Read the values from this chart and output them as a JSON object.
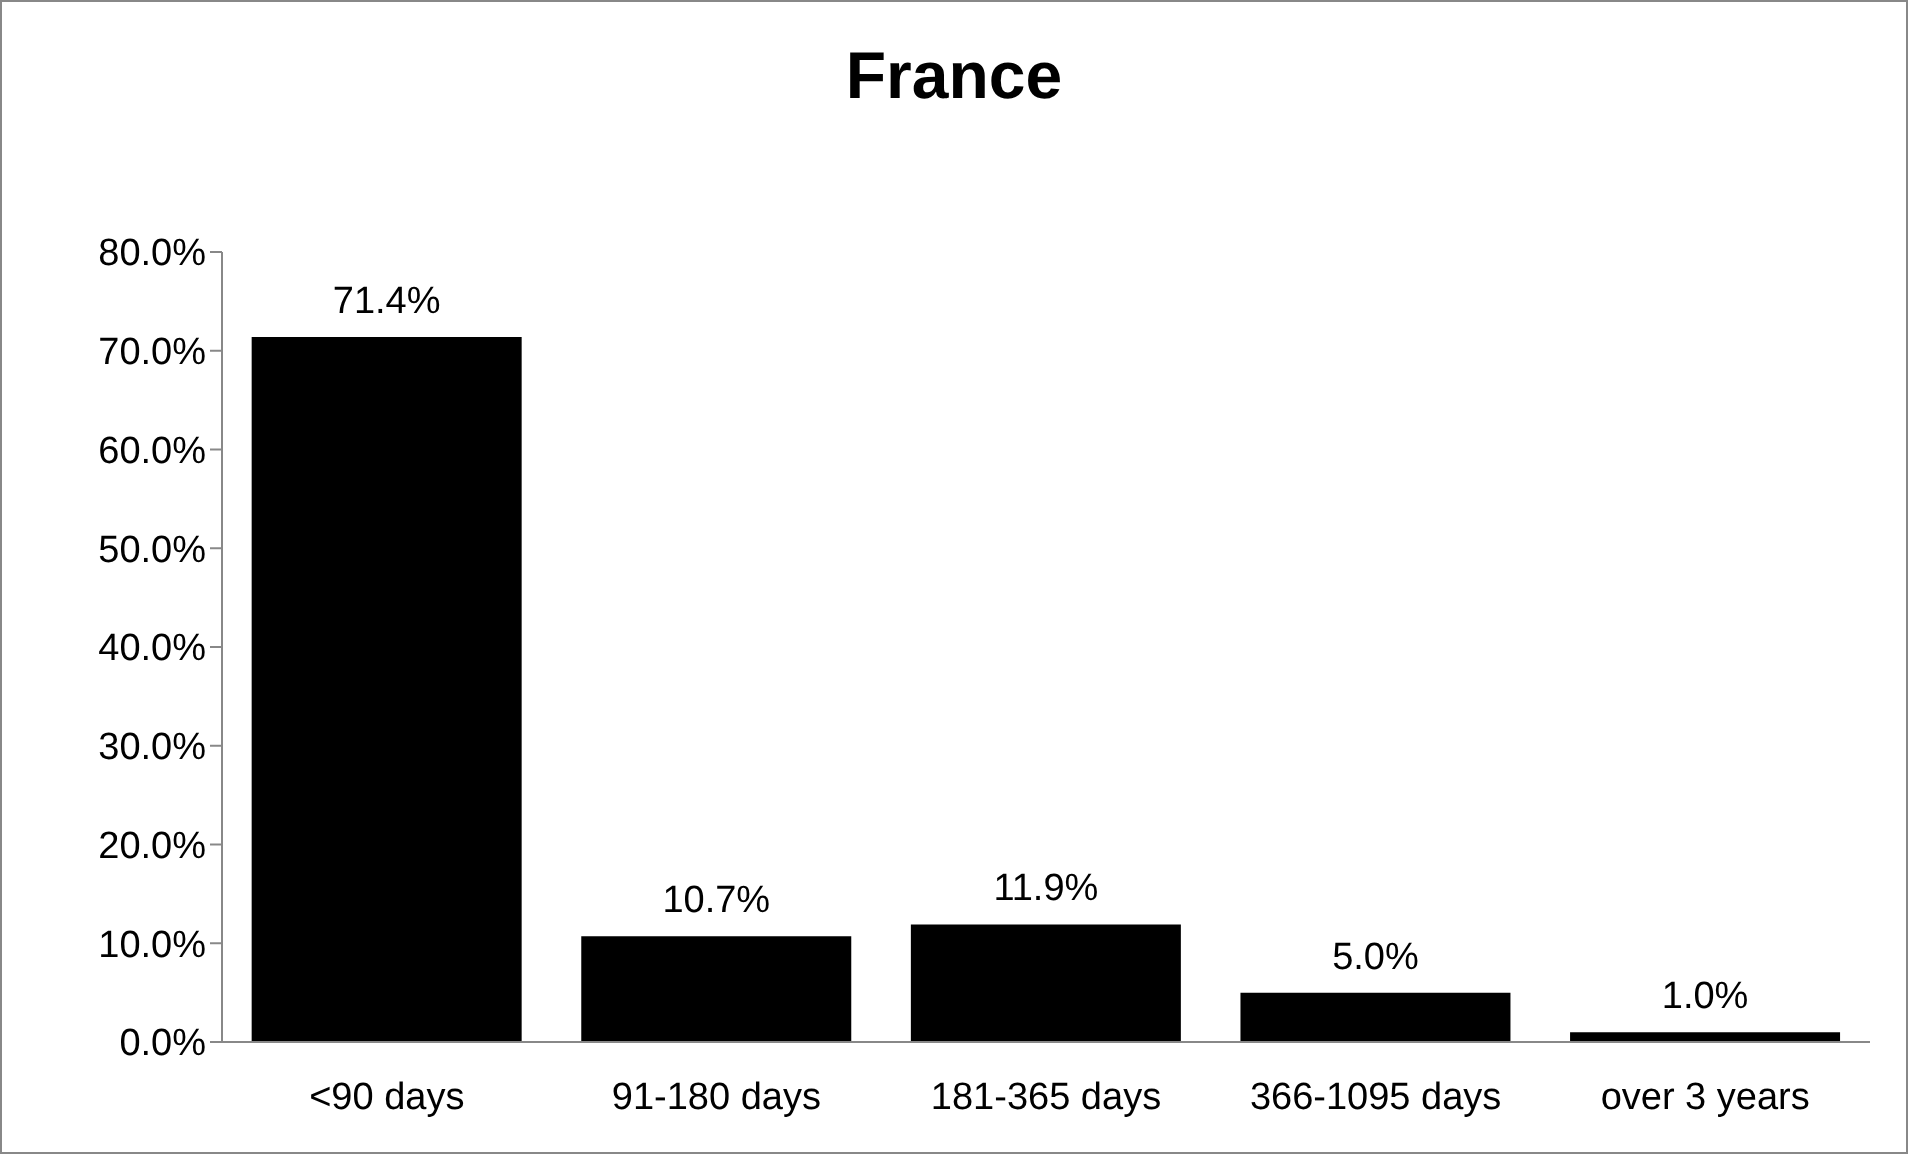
{
  "chart_data": {
    "type": "bar",
    "title": "France",
    "categories": [
      "<90 days",
      "91-180 days",
      "181-365 days",
      "366-1095 days",
      "over 3 years"
    ],
    "values": [
      71.4,
      10.7,
      11.9,
      5.0,
      1.0
    ],
    "value_labels": [
      "71.4%",
      "10.7%",
      "11.9%",
      "5.0%",
      "1.0%"
    ],
    "color": "#000000",
    "ylim": [
      0,
      80
    ],
    "yticks": [
      {
        "value": 0,
        "label": "0.0%"
      },
      {
        "value": 10,
        "label": "10.0%"
      },
      {
        "value": 20,
        "label": "20.0%"
      },
      {
        "value": 30,
        "label": "30.0%"
      },
      {
        "value": 40,
        "label": "40.0%"
      },
      {
        "value": 50,
        "label": "50.0%"
      },
      {
        "value": 60,
        "label": "60.0%"
      },
      {
        "value": 70,
        "label": "70.0%"
      },
      {
        "value": 80,
        "label": "80.0%"
      }
    ],
    "grid": false,
    "legend": false
  }
}
